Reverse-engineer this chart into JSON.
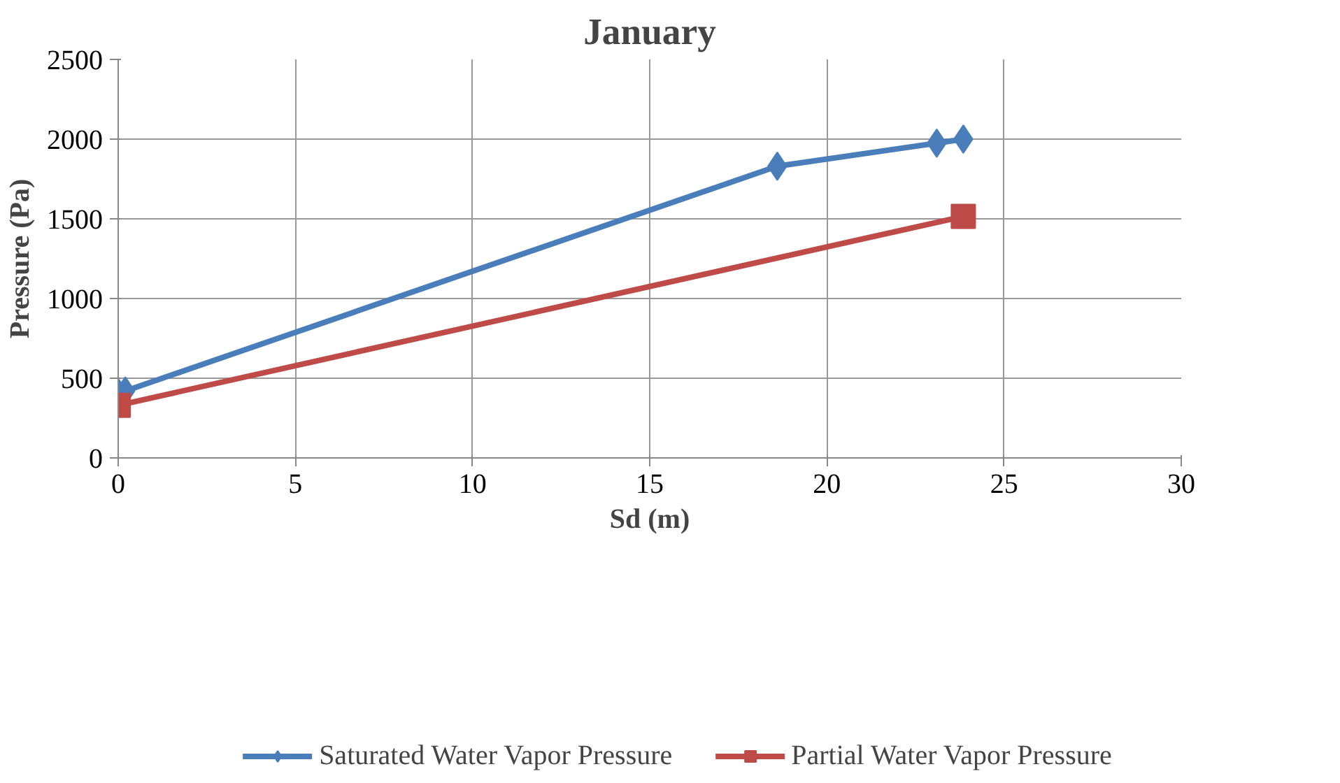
{
  "chart_data": {
    "type": "line",
    "title": "January",
    "xlabel": "Sd (m)",
    "ylabel": "Pressure (Pa)",
    "xlim": [
      0,
      30
    ],
    "xticks": [
      0,
      5,
      10,
      15,
      20,
      25,
      30
    ],
    "ylim": [
      0,
      2500
    ],
    "yticks": [
      0,
      500,
      1000,
      1500,
      2000,
      2500
    ],
    "grid": true,
    "legend": "bottom",
    "series": [
      {
        "name": "Saturated Water Vapor Pressure",
        "color": "#4a7ebb",
        "marker": "diamond",
        "x": [
          0,
          0.2,
          18.6,
          23.1,
          23.85
        ],
        "values": [
          410,
          420,
          1830,
          1975,
          2000
        ]
      },
      {
        "name": "Partial Water Vapor Pressure",
        "color": "#be4b48",
        "marker": "square",
        "x": [
          0,
          23.85
        ],
        "values": [
          330,
          1515
        ]
      }
    ]
  }
}
